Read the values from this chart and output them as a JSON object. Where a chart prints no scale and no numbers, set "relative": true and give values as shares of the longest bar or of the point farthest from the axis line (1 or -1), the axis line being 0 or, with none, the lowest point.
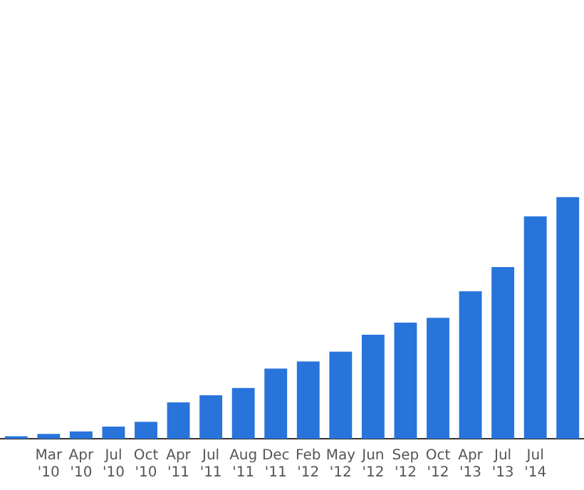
{
  "chart_data": {
    "type": "bar",
    "relative": true,
    "color": "#2874db",
    "categories": [
      null,
      "Mar '10",
      "Apr '10",
      "Jul '10",
      "Oct '10",
      "Apr '11",
      "Jul '11",
      "Aug '11",
      "Dec '11",
      "Feb '12",
      "May '12",
      "Jun '12",
      "Sep '12",
      "Oct '12",
      "Apr '13",
      "Jul '13",
      "Jul '14",
      null
    ],
    "values": [
      0.01,
      0.02,
      0.03,
      0.05,
      0.07,
      0.15,
      0.18,
      0.21,
      0.29,
      0.32,
      0.36,
      0.43,
      0.48,
      0.5,
      0.61,
      0.71,
      0.92,
      1
    ]
  }
}
